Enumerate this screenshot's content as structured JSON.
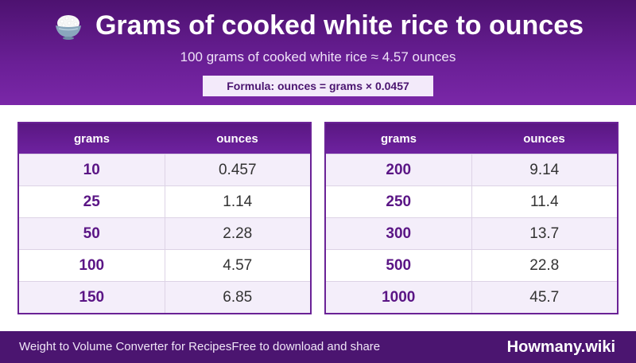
{
  "header": {
    "icon": "rice-bowl-icon",
    "title": "Grams of cooked white rice to ounces",
    "subtitle": "100 grams of cooked white rice ≈ 4.57 ounces",
    "formula": "Formula: ounces = grams × 0.0457"
  },
  "tables": [
    {
      "columns": [
        "grams",
        "ounces"
      ],
      "rows": [
        [
          "10",
          "0.457"
        ],
        [
          "25",
          "1.14"
        ],
        [
          "50",
          "2.28"
        ],
        [
          "100",
          "4.57"
        ],
        [
          "150",
          "6.85"
        ]
      ]
    },
    {
      "columns": [
        "grams",
        "ounces"
      ],
      "rows": [
        [
          "200",
          "9.14"
        ],
        [
          "250",
          "11.4"
        ],
        [
          "300",
          "13.7"
        ],
        [
          "500",
          "22.8"
        ],
        [
          "1000",
          "45.7"
        ]
      ]
    }
  ],
  "footer": {
    "left_text": "Weight to Volume Converter for Recipes",
    "left_note": "Free to download and share",
    "brand": "Howmany.wiki"
  },
  "colors": {
    "primary_purple": "#6a1f96",
    "dark_purple": "#4b1570"
  }
}
